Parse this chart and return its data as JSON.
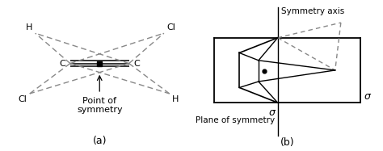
{
  "bg_color": "#ffffff",
  "line_color": "#000000",
  "dashed_color": "#888888",
  "label_a": "(a)",
  "label_b": "(b)",
  "text_point_sym": "Point of\nsymmetry",
  "text_plane_sym": "Plane of symmetry",
  "text_sym_axis": "Symmetry axis",
  "sigma": "σ",
  "font_size_labels": 8,
  "font_size_atom": 8,
  "font_size_caption": 9
}
